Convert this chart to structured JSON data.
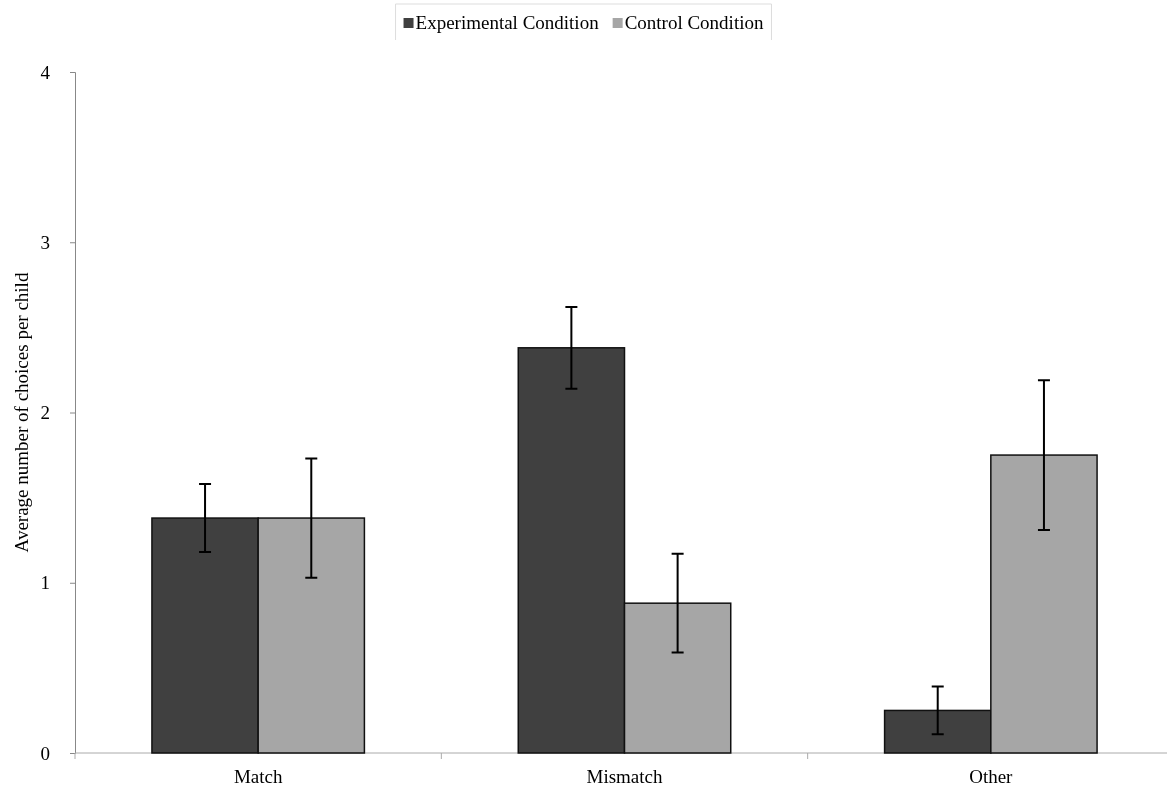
{
  "chart_data": {
    "type": "bar",
    "ylabel": "Average number of choices per child",
    "categories": [
      "Match",
      "Mismatch",
      "Other"
    ],
    "series": [
      {
        "name": "Experimental Condition",
        "color": "#404040",
        "values": [
          1.38,
          2.38,
          0.25
        ],
        "errors": [
          0.2,
          0.24,
          0.14
        ]
      },
      {
        "name": "Control Condition",
        "color": "#a6a6a6",
        "values": [
          1.38,
          0.88,
          1.75
        ],
        "errors": [
          0.35,
          0.29,
          0.44
        ]
      }
    ],
    "ylim": [
      0,
      4
    ],
    "yticks": [
      0,
      1,
      2,
      3,
      4
    ],
    "grid": false,
    "legend": "top"
  }
}
